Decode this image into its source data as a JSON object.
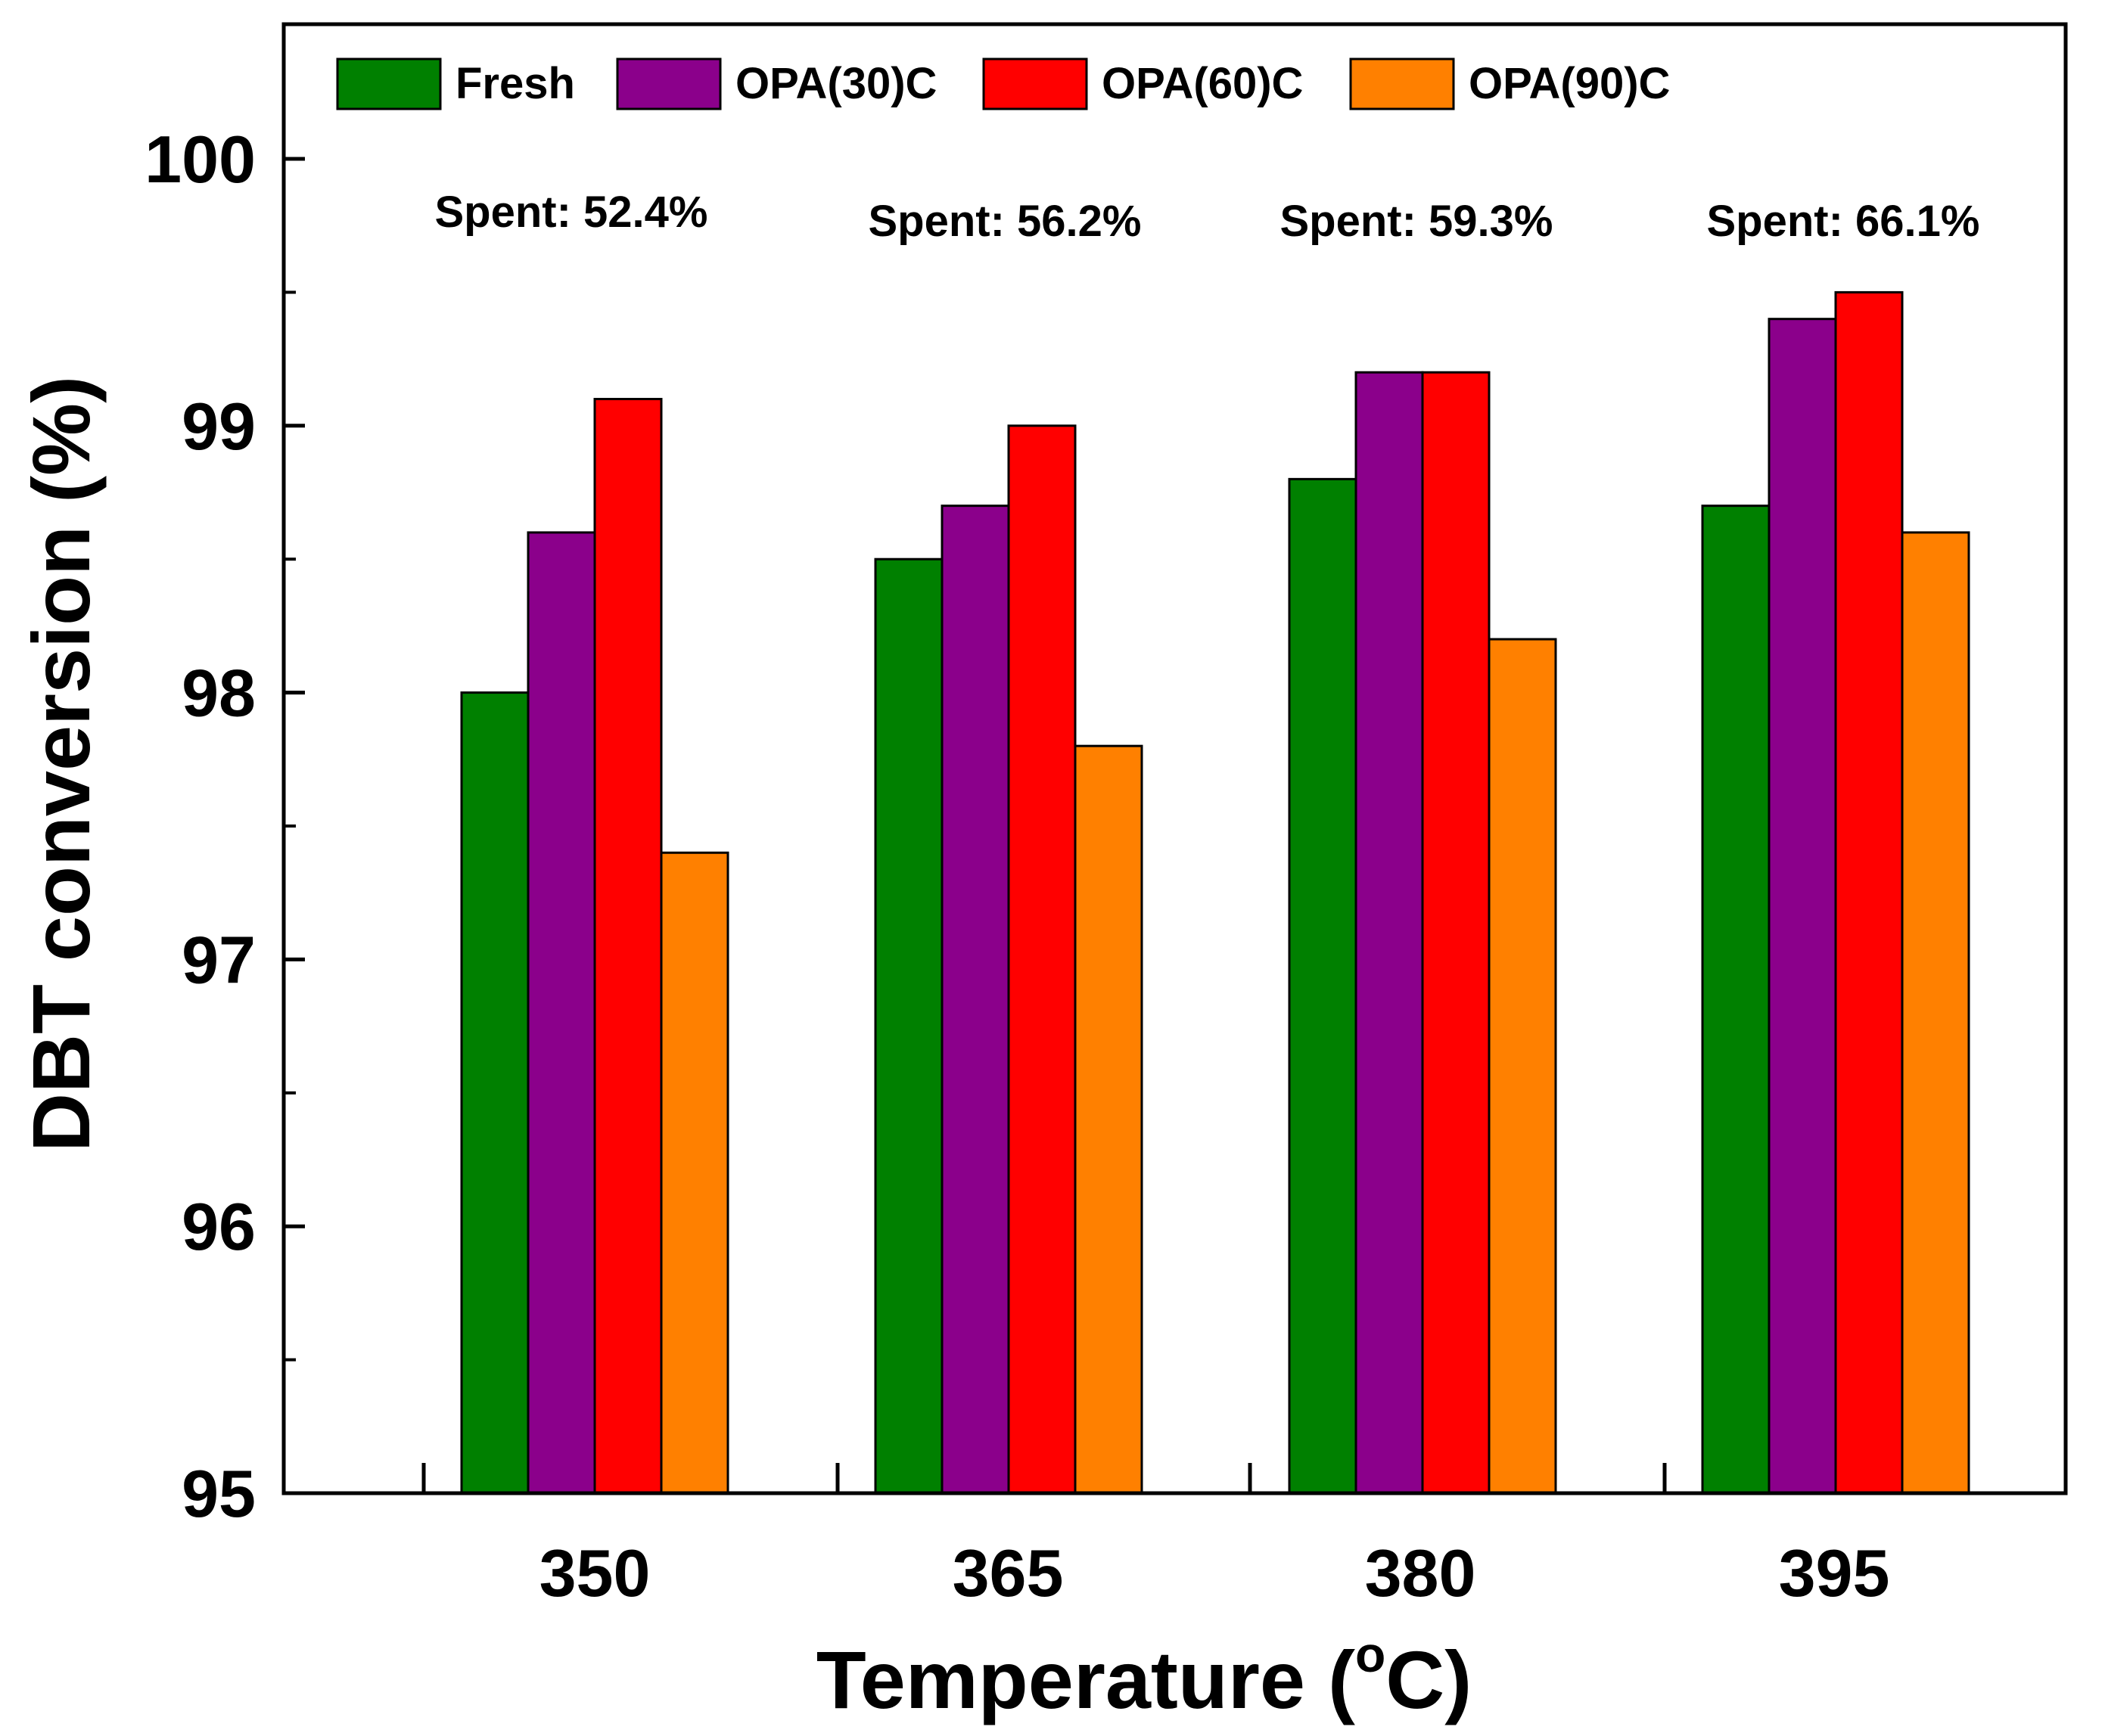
{
  "chart_data": {
    "type": "bar",
    "title": "",
    "xlabel": "Temperature (°C)",
    "xlabel_parts": {
      "main": "Temperature (",
      "degree": "o",
      "unit": "C)"
    },
    "ylabel": "DBT conversion (%)",
    "ylim": [
      95,
      100.5
    ],
    "yticks": [
      95,
      96,
      97,
      98,
      99,
      100
    ],
    "ytick_labels": [
      "95",
      "96",
      "97",
      "98",
      "99",
      "100"
    ],
    "categories": [
      "350",
      "365",
      "380",
      "395"
    ],
    "series": [
      {
        "name": "Fresh",
        "color": "#008000",
        "values": [
          98.0,
          98.5,
          98.8,
          98.7
        ]
      },
      {
        "name": "OPA(30)C",
        "color": "#8B008B",
        "values": [
          98.6,
          98.7,
          99.2,
          99.4
        ]
      },
      {
        "name": "OPA(60)C",
        "color": "#FF0000",
        "values": [
          99.1,
          99.0,
          99.2,
          99.5
        ]
      },
      {
        "name": "OPA(90)C",
        "color": "#FF8000",
        "values": [
          97.4,
          97.8,
          98.2,
          98.6
        ]
      }
    ],
    "annotations": [
      "Spent: 52.4%",
      "Spent: 56.2%",
      "Spent: 59.3%",
      "Spent: 66.1%"
    ],
    "legend_position": "top",
    "grid": false
  }
}
